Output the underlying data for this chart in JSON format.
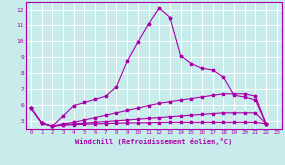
{
  "xlabel": "Windchill (Refroidissement éolien,°C)",
  "background_color": "#c8ecec",
  "grid_color": "#ffffff",
  "line_color": "#aa00aa",
  "xlim_min": -0.5,
  "xlim_max": 23.5,
  "ylim_min": 4.5,
  "ylim_max": 12.5,
  "yticks": [
    5,
    6,
    7,
    8,
    9,
    10,
    11,
    12
  ],
  "xticks": [
    0,
    1,
    2,
    3,
    4,
    5,
    6,
    7,
    8,
    9,
    10,
    11,
    12,
    13,
    14,
    15,
    16,
    17,
    18,
    19,
    20,
    21,
    22,
    23
  ],
  "line1_x": [
    0,
    1,
    2,
    3,
    4,
    5,
    6,
    7,
    8,
    9,
    10,
    11,
    12,
    13,
    14,
    15,
    16,
    17,
    18,
    19,
    20,
    21,
    22
  ],
  "line1_y": [
    5.8,
    4.85,
    4.65,
    5.3,
    5.95,
    6.15,
    6.35,
    6.55,
    7.15,
    8.75,
    9.95,
    11.1,
    12.1,
    11.5,
    9.1,
    8.6,
    8.3,
    8.2,
    7.75,
    6.6,
    6.5,
    6.3,
    4.8
  ],
  "line2_x": [
    0,
    1,
    2,
    3,
    4,
    5,
    6,
    7,
    8,
    9,
    10,
    11,
    12,
    13,
    14,
    15,
    16,
    17,
    18,
    19,
    20,
    21,
    22
  ],
  "line2_y": [
    5.8,
    4.85,
    4.65,
    4.8,
    4.9,
    5.05,
    5.2,
    5.35,
    5.5,
    5.65,
    5.8,
    5.95,
    6.1,
    6.2,
    6.3,
    6.4,
    6.5,
    6.6,
    6.7,
    6.7,
    6.7,
    6.55,
    4.8
  ],
  "line3_x": [
    0,
    1,
    2,
    3,
    4,
    5,
    6,
    7,
    8,
    9,
    10,
    11,
    12,
    13,
    14,
    15,
    16,
    17,
    18,
    19,
    20,
    21,
    22
  ],
  "line3_y": [
    5.8,
    4.85,
    4.65,
    4.75,
    4.8,
    4.85,
    4.9,
    4.95,
    5.0,
    5.05,
    5.1,
    5.15,
    5.2,
    5.25,
    5.3,
    5.35,
    5.4,
    5.45,
    5.5,
    5.5,
    5.5,
    5.5,
    4.8
  ],
  "line4_x": [
    0,
    1,
    2,
    3,
    4,
    5,
    6,
    7,
    8,
    9,
    10,
    11,
    12,
    13,
    14,
    15,
    16,
    17,
    18,
    19,
    20,
    21,
    22
  ],
  "line4_y": [
    5.8,
    4.85,
    4.65,
    4.72,
    4.75,
    4.78,
    4.8,
    4.82,
    4.84,
    4.86,
    4.87,
    4.88,
    4.89,
    4.9,
    4.9,
    4.9,
    4.9,
    4.9,
    4.9,
    4.9,
    4.9,
    4.9,
    4.8
  ]
}
